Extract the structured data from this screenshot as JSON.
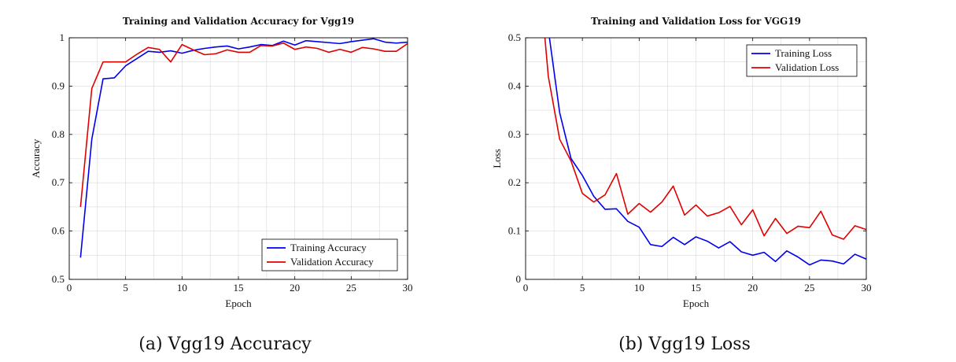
{
  "chart_data": [
    {
      "type": "line",
      "title": "Training and Validation Accuracy for Vgg19",
      "xlabel": "Epoch",
      "ylabel": "Accuracy",
      "xlim": [
        0,
        30
      ],
      "ylim": [
        0.5,
        1.0
      ],
      "xticks": [
        0,
        5,
        10,
        15,
        20,
        25,
        30
      ],
      "yticks": [
        0.5,
        0.6,
        0.7,
        0.8,
        0.9,
        1.0
      ],
      "ytick_labels": [
        "0.5",
        "0.6",
        "0.7",
        "0.8",
        "0.9",
        "1"
      ],
      "grid": true,
      "legend_position": "bottom-right",
      "caption": "(a) Vgg19 Accuracy",
      "x": [
        1,
        2,
        3,
        4,
        5,
        6,
        7,
        8,
        9,
        10,
        11,
        12,
        13,
        14,
        15,
        16,
        17,
        18,
        19,
        20,
        21,
        22,
        23,
        24,
        25,
        26,
        27,
        28,
        29,
        30
      ],
      "series": [
        {
          "name": "Training Accuracy",
          "color": "#0000ee",
          "values": [
            0.545,
            0.79,
            0.915,
            0.917,
            0.942,
            0.957,
            0.972,
            0.97,
            0.973,
            0.968,
            0.974,
            0.978,
            0.981,
            0.983,
            0.977,
            0.981,
            0.986,
            0.984,
            0.993,
            0.985,
            0.994,
            0.992,
            0.99,
            0.988,
            0.992,
            0.995,
            0.998,
            0.991,
            0.989,
            0.991
          ]
        },
        {
          "name": "Validation Accuracy",
          "color": "#e00000",
          "values": [
            0.65,
            0.895,
            0.95,
            0.95,
            0.95,
            0.966,
            0.98,
            0.976,
            0.95,
            0.986,
            0.975,
            0.965,
            0.967,
            0.975,
            0.97,
            0.97,
            0.984,
            0.983,
            0.989,
            0.976,
            0.981,
            0.978,
            0.97,
            0.976,
            0.97,
            0.98,
            0.977,
            0.972,
            0.972,
            0.988
          ]
        }
      ]
    },
    {
      "type": "line",
      "title": "Training and Validation Loss for VGG19",
      "xlabel": "Epoch",
      "ylabel": "Loss",
      "xlim": [
        0,
        30
      ],
      "ylim": [
        0,
        0.5
      ],
      "xticks": [
        0,
        5,
        10,
        15,
        20,
        25,
        30
      ],
      "yticks": [
        0,
        0.1,
        0.2,
        0.3,
        0.4,
        0.5
      ],
      "ytick_labels": [
        "0",
        "0.1",
        "0.2",
        "0.3",
        "0.4",
        "0.5"
      ],
      "grid": true,
      "legend_position": "top-right",
      "caption": "(b) Vgg19 Loss",
      "series": [
        {
          "name": "Training Loss",
          "color": "#0000ee",
          "x": [
            2.1,
            3,
            4,
            5,
            6,
            7,
            8,
            9,
            10,
            11,
            12,
            13,
            14,
            15,
            16,
            17,
            18,
            19,
            20,
            21,
            22,
            23,
            24,
            25,
            26,
            27,
            28,
            29,
            30
          ],
          "values": [
            0.5,
            0.345,
            0.25,
            0.215,
            0.172,
            0.145,
            0.146,
            0.12,
            0.108,
            0.072,
            0.068,
            0.087,
            0.072,
            0.088,
            0.079,
            0.065,
            0.078,
            0.057,
            0.05,
            0.056,
            0.037,
            0.059,
            0.046,
            0.03,
            0.04,
            0.038,
            0.032,
            0.052,
            0.042
          ]
        },
        {
          "name": "Validation Loss",
          "color": "#e00000",
          "x": [
            1.7,
            2,
            3,
            4,
            5,
            6,
            7,
            8,
            9,
            10,
            11,
            12,
            13,
            14,
            15,
            16,
            17,
            18,
            19,
            20,
            21,
            22,
            23,
            24,
            25,
            26,
            27,
            28,
            29,
            30
          ],
          "values": [
            0.5,
            0.42,
            0.29,
            0.245,
            0.178,
            0.16,
            0.175,
            0.219,
            0.135,
            0.157,
            0.139,
            0.16,
            0.193,
            0.133,
            0.154,
            0.131,
            0.138,
            0.151,
            0.113,
            0.144,
            0.09,
            0.126,
            0.095,
            0.11,
            0.107,
            0.141,
            0.092,
            0.083,
            0.111,
            0.103
          ]
        }
      ]
    }
  ]
}
